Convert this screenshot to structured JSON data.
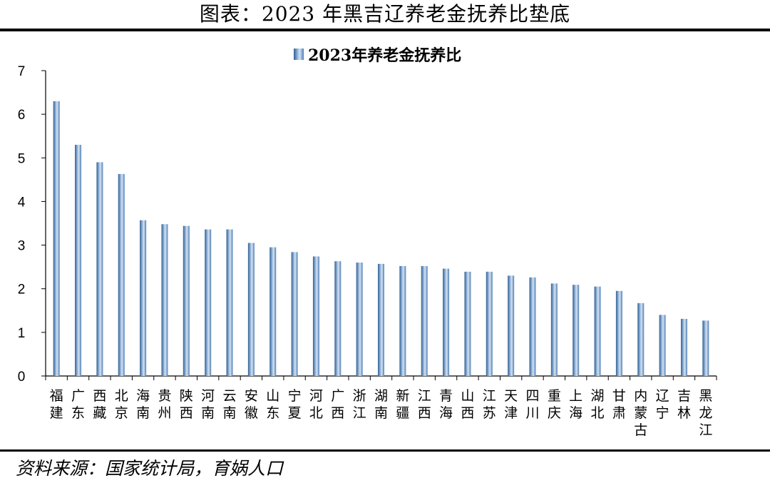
{
  "header": {
    "title": "图表：2023 年黑吉辽养老金抚养比垫底"
  },
  "footer": {
    "source": "资料来源：国家统计局，育娲人口"
  },
  "colors": {
    "bar_dark": "#4f7fb5",
    "bar_light": "#d4e3f3",
    "axis": "#000000"
  },
  "chart_data": {
    "type": "bar",
    "title": "",
    "legend": [
      "2023年养老金抚养比"
    ],
    "legend_position": "top-center",
    "xlabel": "",
    "ylabel": "",
    "ylim": [
      0,
      7
    ],
    "yticks": [
      0,
      1,
      2,
      3,
      4,
      5,
      6,
      7
    ],
    "grid": false,
    "categories": [
      "福建",
      "广东",
      "西藏",
      "北京",
      "海南",
      "贵州",
      "陕西",
      "河南",
      "云南",
      "安徽",
      "山东",
      "宁夏",
      "河北",
      "广西",
      "浙江",
      "湖南",
      "新疆",
      "江西",
      "青海",
      "山西",
      "江苏",
      "天津",
      "四川",
      "重庆",
      "上海",
      "湖北",
      "甘肃",
      "内蒙古",
      "辽宁",
      "吉林",
      "黑龙江"
    ],
    "series": [
      {
        "name": "2023年养老金抚养比",
        "values": [
          6.3,
          5.3,
          4.9,
          4.63,
          3.57,
          3.48,
          3.44,
          3.36,
          3.36,
          3.05,
          2.95,
          2.84,
          2.74,
          2.63,
          2.6,
          2.57,
          2.52,
          2.52,
          2.46,
          2.39,
          2.39,
          2.3,
          2.26,
          2.12,
          2.09,
          2.05,
          1.95,
          1.67,
          1.4,
          1.31,
          1.27
        ]
      }
    ]
  }
}
